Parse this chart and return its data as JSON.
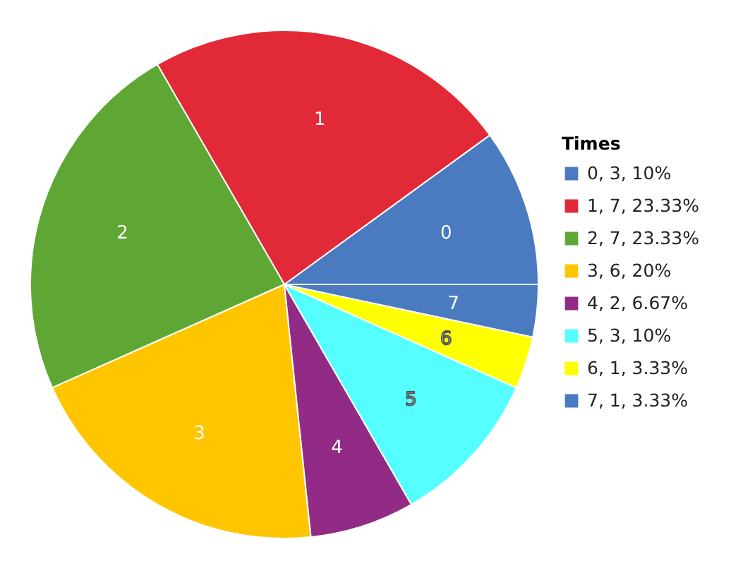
{
  "chart_data": {
    "type": "pie",
    "legend_title": "Times",
    "legend": "right",
    "categories": [
      "0, 3, 10%",
      "1, 7, 23.33%",
      "2, 7, 23.33%",
      "3, 6, 20%",
      "4, 2, 6.67%",
      "5, 3, 10%",
      "6, 1, 3.33%",
      "7, 1, 3.33%"
    ],
    "values": [
      3,
      7,
      7,
      6,
      2,
      3,
      1,
      1
    ],
    "colors": [
      "#4a7bc0",
      "#e22938",
      "#5ea734",
      "#ffc600",
      "#912b85",
      "#55ffff",
      "#ffff00",
      "#4a7bc0"
    ],
    "annotations": [
      "0",
      "1",
      "2",
      "3",
      "4",
      "5",
      "6",
      "7"
    ]
  }
}
